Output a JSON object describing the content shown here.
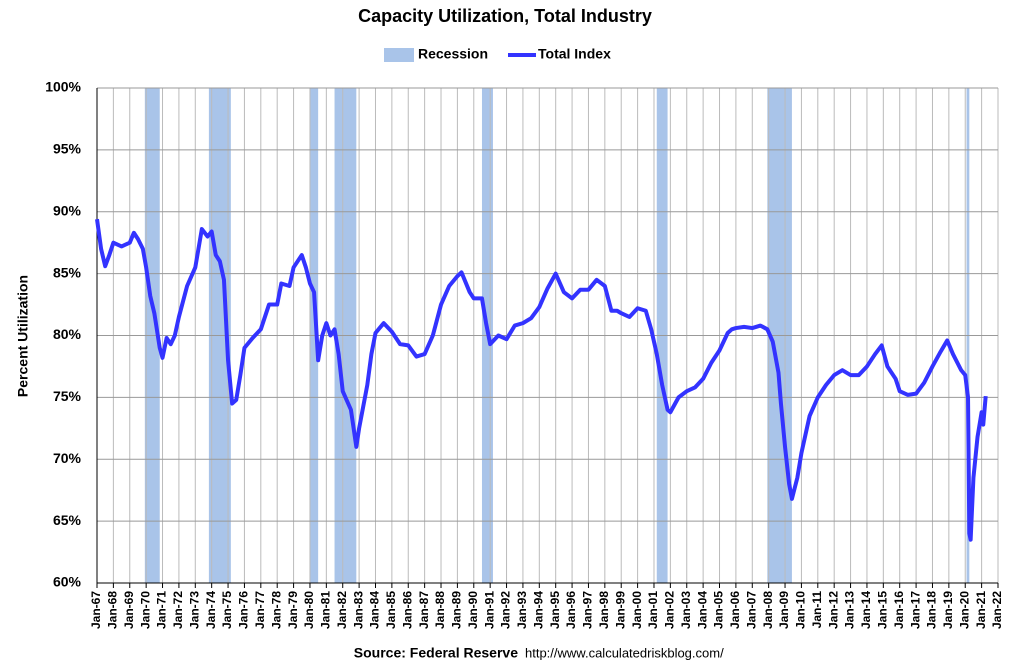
{
  "chart_data": {
    "type": "line",
    "title": "Capacity Utilization, Total Industry",
    "ylabel": "Percent Utilization",
    "source": "Source: Federal Reserve",
    "source_url": "http://www.calculatedriskblog.com/",
    "grid": true,
    "legend": "top",
    "recessions": {
      "name": "Recession",
      "color": "#a9c4e9",
      "spans": [
        [
          1969.92,
          1970.83
        ],
        [
          1973.83,
          1975.17
        ],
        [
          1980.0,
          1980.5
        ],
        [
          1981.5,
          1982.83
        ],
        [
          1990.5,
          1991.17
        ],
        [
          2001.17,
          2001.83
        ],
        [
          2007.92,
          2009.42
        ],
        [
          2020.08,
          2020.25
        ]
      ]
    },
    "series": [
      {
        "name": "Total Index",
        "color": "#3333ff",
        "x": [
          1967.0,
          1967.25,
          1967.5,
          1967.75,
          1968.0,
          1968.5,
          1969.0,
          1969.25,
          1969.5,
          1969.8,
          1970.0,
          1970.25,
          1970.5,
          1970.83,
          1971.0,
          1971.25,
          1971.5,
          1971.75,
          1972.0,
          1972.5,
          1973.0,
          1973.4,
          1973.75,
          1974.0,
          1974.25,
          1974.5,
          1974.75,
          1975.0,
          1975.25,
          1975.5,
          1975.75,
          1976.0,
          1976.5,
          1977.0,
          1977.5,
          1978.0,
          1978.25,
          1978.75,
          1979.0,
          1979.5,
          1979.75,
          1980.0,
          1980.25,
          1980.5,
          1980.75,
          1981.0,
          1981.25,
          1981.5,
          1981.75,
          1982.0,
          1982.5,
          1982.83,
          1983.0,
          1983.5,
          1983.75,
          1984.0,
          1984.5,
          1985.0,
          1985.5,
          1986.0,
          1986.5,
          1987.0,
          1987.5,
          1988.0,
          1988.5,
          1989.0,
          1989.25,
          1989.75,
          1990.0,
          1990.5,
          1990.75,
          1991.0,
          1991.5,
          1992.0,
          1992.5,
          1993.0,
          1993.5,
          1994.0,
          1994.5,
          1995.0,
          1995.5,
          1996.0,
          1996.5,
          1997.0,
          1997.5,
          1998.0,
          1998.4,
          1998.75,
          1999.0,
          1999.5,
          2000.0,
          2000.5,
          2000.83,
          2001.17,
          2001.5,
          2001.83,
          2002.0,
          2002.5,
          2003.0,
          2003.5,
          2004.0,
          2004.5,
          2005.0,
          2005.5,
          2005.75,
          2006.0,
          2006.5,
          2007.0,
          2007.5,
          2007.92,
          2008.25,
          2008.6,
          2008.75,
          2009.0,
          2009.25,
          2009.42,
          2009.75,
          2010.0,
          2010.5,
          2011.0,
          2011.5,
          2012.0,
          2012.5,
          2013.0,
          2013.5,
          2014.0,
          2014.5,
          2014.9,
          2015.25,
          2015.75,
          2016.0,
          2016.5,
          2017.0,
          2017.5,
          2018.0,
          2018.5,
          2018.9,
          2019.25,
          2019.75,
          2020.0,
          2020.17,
          2020.25,
          2020.33,
          2020.5,
          2020.75,
          2021.0,
          2021.1,
          2021.25
        ],
        "values": [
          89.4,
          87,
          85.6,
          86.5,
          87.5,
          87.2,
          87.5,
          88.3,
          87.8,
          87,
          85.5,
          83.2,
          81.8,
          79,
          78.2,
          79.8,
          79.3,
          80,
          81.5,
          84,
          85.5,
          88.6,
          88,
          88.4,
          86.5,
          86,
          84.5,
          78,
          74.5,
          74.8,
          76.8,
          79,
          79.8,
          80.5,
          82.5,
          82.5,
          84.2,
          84,
          85.5,
          86.5,
          85.5,
          84.2,
          83.5,
          78,
          80,
          81,
          80,
          80.5,
          78.5,
          75.5,
          74,
          71,
          72.5,
          76,
          78.5,
          80.2,
          81,
          80.3,
          79.3,
          79.2,
          78.3,
          78.5,
          80,
          82.5,
          84,
          84.8,
          85.1,
          83.5,
          83,
          83,
          81,
          79.3,
          80,
          79.7,
          80.8,
          81,
          81.4,
          82.3,
          83.8,
          85,
          83.5,
          83,
          83.7,
          83.7,
          84.5,
          84,
          82,
          82,
          81.8,
          81.5,
          82.2,
          82,
          80.5,
          78.5,
          76,
          74,
          73.8,
          75,
          75.5,
          75.8,
          76.5,
          77.8,
          78.8,
          80.2,
          80.5,
          80.6,
          80.7,
          80.6,
          80.8,
          80.5,
          79.5,
          77,
          74.5,
          71,
          68,
          66.8,
          68.5,
          70.5,
          73.5,
          75,
          76,
          76.8,
          77.2,
          76.8,
          76.8,
          77.5,
          78.5,
          79.2,
          77.5,
          76.5,
          75.5,
          75.2,
          75.3,
          76.2,
          77.5,
          78.7,
          79.6,
          78.5,
          77.2,
          76.8,
          75,
          64,
          63.5,
          68.5,
          71.8,
          73.8,
          72.8,
          75.1
        ]
      }
    ],
    "xlim": [
      1967,
      2022
    ],
    "xticks": [
      {
        "value": 1967,
        "label": "Jan-67"
      },
      {
        "value": 1968,
        "label": "Jan-68"
      },
      {
        "value": 1969,
        "label": "Jan-69"
      },
      {
        "value": 1970,
        "label": "Jan-70"
      },
      {
        "value": 1971,
        "label": "Jan-71"
      },
      {
        "value": 1972,
        "label": "Jan-72"
      },
      {
        "value": 1973,
        "label": "Jan-73"
      },
      {
        "value": 1974,
        "label": "Jan-74"
      },
      {
        "value": 1975,
        "label": "Jan-75"
      },
      {
        "value": 1976,
        "label": "Jan-76"
      },
      {
        "value": 1977,
        "label": "Jan-77"
      },
      {
        "value": 1978,
        "label": "Jan-78"
      },
      {
        "value": 1979,
        "label": "Jan-79"
      },
      {
        "value": 1980,
        "label": "Jan-80"
      },
      {
        "value": 1981,
        "label": "Jan-81"
      },
      {
        "value": 1982,
        "label": "Jan-82"
      },
      {
        "value": 1983,
        "label": "Jan-83"
      },
      {
        "value": 1984,
        "label": "Jan-84"
      },
      {
        "value": 1985,
        "label": "Jan-85"
      },
      {
        "value": 1986,
        "label": "Jan-86"
      },
      {
        "value": 1987,
        "label": "Jan-87"
      },
      {
        "value": 1988,
        "label": "Jan-88"
      },
      {
        "value": 1989,
        "label": "Jan-89"
      },
      {
        "value": 1990,
        "label": "Jan-90"
      },
      {
        "value": 1991,
        "label": "Jan-91"
      },
      {
        "value": 1992,
        "label": "Jan-92"
      },
      {
        "value": 1993,
        "label": "Jan-93"
      },
      {
        "value": 1994,
        "label": "Jan-94"
      },
      {
        "value": 1995,
        "label": "Jan-95"
      },
      {
        "value": 1996,
        "label": "Jan-96"
      },
      {
        "value": 1997,
        "label": "Jan-97"
      },
      {
        "value": 1998,
        "label": "Jan-98"
      },
      {
        "value": 1999,
        "label": "Jan-99"
      },
      {
        "value": 2000,
        "label": "Jan-00"
      },
      {
        "value": 2001,
        "label": "Jan-01"
      },
      {
        "value": 2002,
        "label": "Jan-02"
      },
      {
        "value": 2003,
        "label": "Jan-03"
      },
      {
        "value": 2004,
        "label": "Jan-04"
      },
      {
        "value": 2005,
        "label": "Jan-05"
      },
      {
        "value": 2006,
        "label": "Jan-06"
      },
      {
        "value": 2007,
        "label": "Jan-07"
      },
      {
        "value": 2008,
        "label": "Jan-08"
      },
      {
        "value": 2009,
        "label": "Jan-09"
      },
      {
        "value": 2010,
        "label": "Jan-10"
      },
      {
        "value": 2011,
        "label": "Jan-11"
      },
      {
        "value": 2012,
        "label": "Jan-12"
      },
      {
        "value": 2013,
        "label": "Jan-13"
      },
      {
        "value": 2014,
        "label": "Jan-14"
      },
      {
        "value": 2015,
        "label": "Jan-15"
      },
      {
        "value": 2016,
        "label": "Jan-16"
      },
      {
        "value": 2017,
        "label": "Jan-17"
      },
      {
        "value": 2018,
        "label": "Jan-18"
      },
      {
        "value": 2019,
        "label": "Jan-19"
      },
      {
        "value": 2020,
        "label": "Jan-20"
      },
      {
        "value": 2021,
        "label": "Jan-21"
      },
      {
        "value": 2022,
        "label": "Jan-22"
      }
    ],
    "ylim": [
      60,
      100
    ],
    "yticks": [
      {
        "value": 60,
        "label": "60%"
      },
      {
        "value": 65,
        "label": "65%"
      },
      {
        "value": 70,
        "label": "70%"
      },
      {
        "value": 75,
        "label": "75%"
      },
      {
        "value": 80,
        "label": "80%"
      },
      {
        "value": 85,
        "label": "85%"
      },
      {
        "value": 90,
        "label": "90%"
      },
      {
        "value": 95,
        "label": "95%"
      },
      {
        "value": 100,
        "label": "100%"
      }
    ]
  }
}
